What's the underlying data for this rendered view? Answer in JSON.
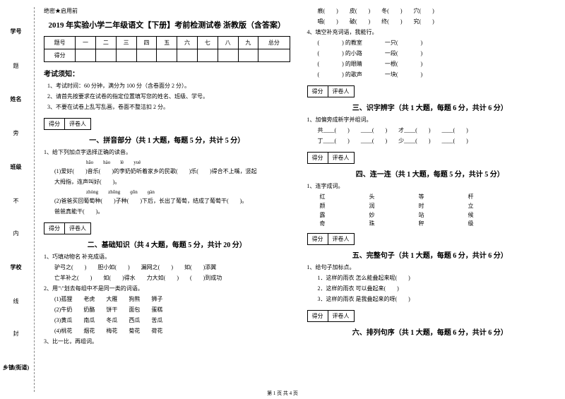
{
  "sideLabels": {
    "items": [
      "学号",
      "姓名",
      "班级",
      "学校",
      "乡镇(街道)"
    ],
    "vert": [
      "题",
      "旁",
      "不",
      "内",
      "线",
      "封"
    ]
  },
  "confidential": "绝密★启用前",
  "title": "2019 年实验小学二年级语文【下册】考前检测试卷 浙教版（含答案）",
  "scoreTable": {
    "headers": [
      "题号",
      "一",
      "二",
      "三",
      "四",
      "五",
      "六",
      "七",
      "八",
      "九",
      "总分"
    ],
    "row2": "得分"
  },
  "notice": {
    "title": "考试须知：",
    "items": [
      "1、考试时间：60 分钟，满分为 100 分（含卷面分 2 分）。",
      "2、请首先按要求在试卷的指定位置填写您的姓名、班级、学号。",
      "3、不要在试卷上乱写乱画，卷面不整洁扣 2 分。"
    ]
  },
  "sectionBox": {
    "score": "得分",
    "reviewer": "评卷人"
  },
  "section1": {
    "title": "一、拼音部分（共 1 大题，每题 5 分，共计 5 分）",
    "q1": "1、给下列加点字选择正确的读音。",
    "pinyin1": "hǎo　　hào　　lè　　yuè",
    "line1": "(1)爱好(　　)音乐(　　)的李奶奶听着家乡的民歌(　　)乐(　　)得合不上嘴，竖起",
    "line2": "大拇指，连声叫好(　　)。",
    "pinyin2": "zhòng　　zhǒng　　ɡōn　　ɡàn",
    "line3": "(2)爸爸买回葡萄种(　　)子种(　　)下后，长出了葡萄，结成了葡萄干(　　)。",
    "line4": "爸爸真能干(　　)。"
  },
  "section2": {
    "title": "二、基础知识（共 4 大题，每题 5 分，共计 20 分）",
    "q1": "1、巧填动物名 补充成语。",
    "lines": [
      "驴弓之(　　)　　胆小如(　　)　　漏网之(　　)　　如(　　)添翼",
      "亡羊补之(　　)　　如(　　)得水　　力大如(　　)　　(　　)到成功"
    ],
    "q2": "2、用\"\\\"划去每组中不是同一类的词语。",
    "group1": "(1)孤狸　　老虎　　大雁　　狗熊　　狮子",
    "group2": "(2)牛奶　　奶酪　　饼干　　面包　　蛋糕",
    "group3": "(3)黄瓜　　南瓜　　冬瓜　　西瓜　　苦瓜",
    "group4": "(4)桃花　　烟花　　梅花　　菊花　　荷花",
    "q3": "3、比一比，再组词。"
  },
  "rightColumn": {
    "charRow1": [
      "痕(　　)　　皮(　　)　　冬(　　)　　穴(　　)"
    ],
    "charRow2": [
      "唱(　　)　　破(　　)　　终(　　)　　究(　　)"
    ],
    "q4": "4、填空补充词语，我能行。",
    "blanks": [
      "(　　　　) 的教室　　　　一只(　　　　)",
      "(　　　　) 的小路　　　　一段(　　　　)",
      "(　　　　) 的眼睛　　　　一根(　　　　)",
      "(　　　　) 的歌声　　　　一块(　　　　)"
    ]
  },
  "section3": {
    "title": "三、识字辨字（共 1 大题，每题 6 分，共计 6 分）",
    "q1": "1、加偏旁成新字并组词。",
    "line1": "共____(　　)　　____(　　)　　才____(　　)　　____(　　)",
    "line2": "丁____(　　)　　____(　　)　　少____(　　)　　____(　　)"
  },
  "section4": {
    "title": "四、连一连（共 1 大题，每题 5 分，共计 5 分）",
    "q1": "1、连字成词。",
    "grid": [
      [
        "红",
        "头",
        "等",
        "杆"
      ],
      [
        "颜",
        "润",
        "时",
        "立"
      ],
      [
        "露",
        "妙",
        "站",
        "候"
      ],
      [
        "奇",
        "珠",
        "秤",
        "级"
      ]
    ]
  },
  "section5": {
    "title": "五、完整句子（共 1 大题，每题 6 分，共计 6 分）",
    "q1": "1、给句子加标点。",
    "lines": [
      "1．这样的雨衣 怎么能叠起来呢(　　)",
      "2．这样的雨衣 可以叠起来(　　)",
      "3．这样的雨衣 是我叠起来的呀(　　)"
    ]
  },
  "section6": {
    "title": "六、排列句序（共 1 大题，每题 6 分，共计 6 分）"
  },
  "footer": "第 1 页 共 4 页"
}
